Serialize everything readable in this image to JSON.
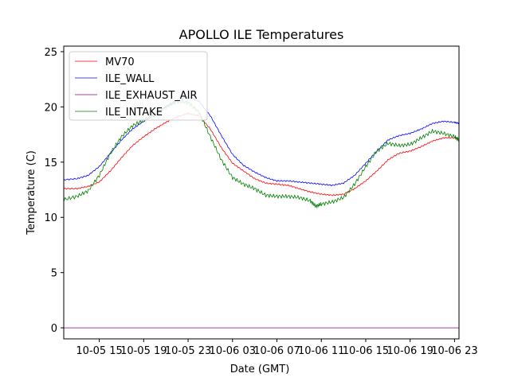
{
  "chart_data": {
    "type": "line",
    "title": "APOLLO ILE Temperatures",
    "xlabel": "Date (GMT)",
    "ylabel": "Temperature (C)",
    "x_unit": "hours since 2024-10-05 00:00 GMT (year not shown)",
    "xlim": [
      11.8,
      47.4
    ],
    "ylim": [
      -1.0,
      25.5
    ],
    "x_ticks": [
      {
        "value": 15,
        "label": "10-05 15"
      },
      {
        "value": 19,
        "label": "10-05 19"
      },
      {
        "value": 23,
        "label": "10-05 23"
      },
      {
        "value": 27,
        "label": "10-06 03"
      },
      {
        "value": 31,
        "label": "10-06 07"
      },
      {
        "value": 35,
        "label": "10-06 11"
      },
      {
        "value": 39,
        "label": "10-06 15"
      },
      {
        "value": 43,
        "label": "10-06 19"
      },
      {
        "value": 47,
        "label": "10-06 23"
      }
    ],
    "y_ticks": [
      {
        "value": 0,
        "label": "0"
      },
      {
        "value": 5,
        "label": "5"
      },
      {
        "value": 10,
        "label": "10"
      },
      {
        "value": 15,
        "label": "15"
      },
      {
        "value": 20,
        "label": "20"
      },
      {
        "value": 25,
        "label": "25"
      }
    ],
    "legend_position": "top-left",
    "series": [
      {
        "name": "MV70",
        "color": "#ff0000",
        "x": [
          11.8,
          13.0,
          14.0,
          15.0,
          16.0,
          17.0,
          18.0,
          19.0,
          20.0,
          21.0,
          22.0,
          23.0,
          24.0,
          25.0,
          26.0,
          27.0,
          28.0,
          29.0,
          30.0,
          31.0,
          32.0,
          33.0,
          34.0,
          35.0,
          36.0,
          37.0,
          38.0,
          39.0,
          40.0,
          41.0,
          42.0,
          43.0,
          44.0,
          45.0,
          46.0,
          47.0,
          47.4
        ],
        "values": [
          12.6,
          12.6,
          12.8,
          13.2,
          14.2,
          15.4,
          16.5,
          17.3,
          18.0,
          18.6,
          19.1,
          19.4,
          19.2,
          18.0,
          16.3,
          14.9,
          14.2,
          13.5,
          13.1,
          13.0,
          12.9,
          12.6,
          12.3,
          12.1,
          12.0,
          12.1,
          12.6,
          13.3,
          14.2,
          15.2,
          15.8,
          16.0,
          16.4,
          16.9,
          17.2,
          17.2,
          17.1
        ]
      },
      {
        "name": "ILE_WALL",
        "color": "#0000ff",
        "x": [
          11.8,
          13.0,
          14.0,
          15.0,
          16.0,
          17.0,
          18.0,
          19.0,
          20.0,
          21.0,
          22.0,
          23.0,
          24.0,
          25.0,
          26.0,
          27.0,
          28.0,
          29.0,
          30.0,
          31.0,
          32.0,
          33.0,
          34.0,
          35.0,
          36.0,
          37.0,
          38.0,
          39.0,
          40.0,
          41.0,
          42.0,
          43.0,
          44.0,
          45.0,
          46.0,
          47.0,
          47.4
        ],
        "values": [
          13.4,
          13.5,
          13.8,
          14.6,
          15.8,
          17.0,
          18.0,
          18.7,
          19.4,
          20.0,
          20.6,
          20.9,
          20.5,
          19.2,
          17.4,
          15.7,
          14.7,
          14.1,
          13.6,
          13.3,
          13.3,
          13.2,
          13.1,
          13.0,
          12.9,
          13.1,
          13.8,
          14.9,
          16.0,
          17.0,
          17.4,
          17.6,
          18.0,
          18.5,
          18.7,
          18.6,
          18.5
        ]
      },
      {
        "name": "ILE_EXHAUST_AIR",
        "color": "#800080",
        "x": [
          11.8,
          20.0,
          30.0,
          40.0,
          47.4
        ],
        "values": [
          0.0,
          0.0,
          0.0,
          0.0,
          0.0
        ]
      },
      {
        "name": "ILE_INTAKE",
        "color": "#008000",
        "x": [
          11.8,
          13.0,
          14.0,
          15.0,
          16.0,
          17.0,
          18.0,
          19.0,
          20.0,
          21.0,
          22.0,
          23.0,
          24.0,
          25.0,
          26.0,
          27.0,
          28.0,
          29.0,
          30.0,
          31.0,
          32.0,
          33.0,
          34.0,
          34.5,
          35.0,
          36.0,
          37.0,
          38.0,
          39.0,
          40.0,
          41.0,
          42.0,
          43.0,
          44.0,
          45.0,
          46.0,
          47.0,
          47.4
        ],
        "values": [
          11.6,
          11.9,
          12.4,
          13.8,
          15.8,
          17.3,
          18.3,
          18.8,
          19.3,
          20.0,
          20.5,
          20.4,
          19.5,
          17.3,
          15.2,
          13.6,
          13.0,
          12.6,
          12.0,
          11.9,
          11.9,
          11.8,
          11.5,
          11.0,
          11.2,
          11.4,
          11.8,
          13.0,
          14.6,
          16.0,
          16.7,
          16.5,
          16.6,
          17.2,
          17.8,
          17.6,
          17.3,
          17.0
        ]
      }
    ]
  }
}
